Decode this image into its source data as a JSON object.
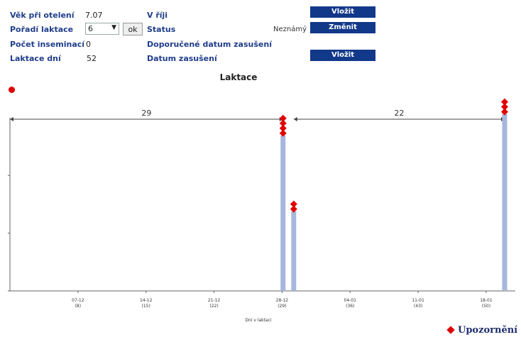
{
  "info": {
    "vek_label": "Věk při otelení",
    "vek_value": "7.07",
    "poradi_label": "Pořadí laktace",
    "poradi_value": "6",
    "ok_label": "ok",
    "inseminaci_label": "Počet inseminací",
    "inseminaci_value": "0",
    "laktace_dni_label": "Laktace dní",
    "laktace_dni_value": "52",
    "v_fiji_label": "V říji",
    "status_label": "Status",
    "status_value": "Neznámý",
    "doporucene_label": "Doporučené datum zasušení",
    "datum_zasuseni_label": "Datum zasušení",
    "vlozit_label_1": "Vložit",
    "zmenit_label": "Změnit",
    "vlozit_label_2": "Vložit"
  },
  "chart_data": {
    "type": "bar",
    "title": "Laktace",
    "xlabel": "Dní v laktaci",
    "ylim": [
      0,
      100
    ],
    "x_ticks": [
      {
        "date": "07-12",
        "day": "(8)"
      },
      {
        "date": "14-12",
        "day": "(15)"
      },
      {
        "date": "21-12",
        "day": "(22)"
      },
      {
        "date": "28-12",
        "day": "(29)"
      },
      {
        "date": "04-01",
        "day": "(36)"
      },
      {
        "date": "11-01",
        "day": "(43)"
      },
      {
        "date": "18-01",
        "day": "(50)"
      }
    ],
    "xlim": [
      1,
      53
    ],
    "bars": [
      {
        "day": 29.1,
        "value": 80,
        "markers": 4
      },
      {
        "day": 30.2,
        "value": 41,
        "markers": 2
      },
      {
        "day": 51.9,
        "value": 91,
        "markers": 3
      }
    ],
    "intervals": [
      {
        "from": 1,
        "to": 29.1,
        "label": "29"
      },
      {
        "from": 30.2,
        "to": 51.9,
        "label": "22"
      }
    ],
    "legend": [
      {
        "name": "Upozornění",
        "color": "#e00000",
        "marker": "diamond"
      }
    ],
    "colors": {
      "bar": "#a7b6dc",
      "marker": "#e00000",
      "axis": "#666666"
    }
  }
}
